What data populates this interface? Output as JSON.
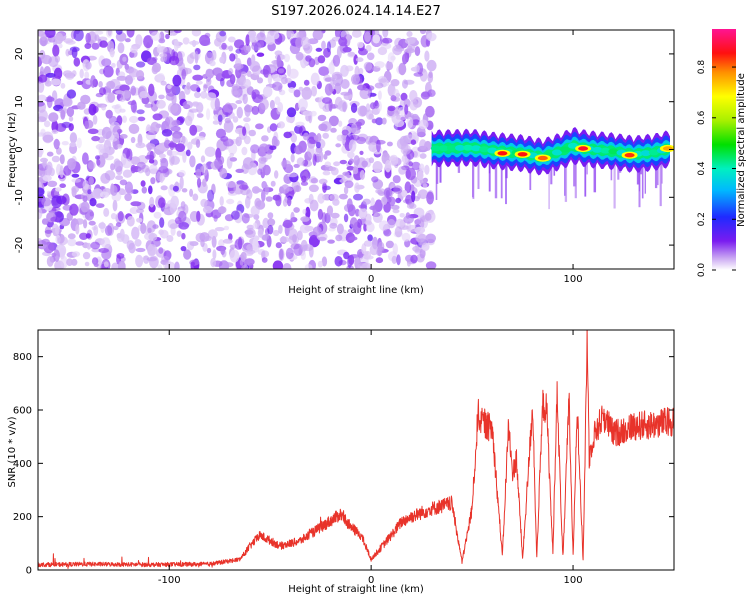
{
  "figure": {
    "title": "S197.2026.024.14.14.E27"
  },
  "chart_data": [
    {
      "type": "heatmap",
      "name": "spectrogram",
      "xlabel": "Height of straight line (km)",
      "ylabel": "Frequency (Hz)",
      "xlim": [
        -165,
        150
      ],
      "ylim": [
        -25,
        25
      ],
      "xticks": [
        -100,
        0,
        100
      ],
      "yticks": [
        -20,
        -10,
        0,
        10,
        20
      ],
      "noise_region_x": [
        -165,
        30
      ],
      "signal_band": {
        "x": [
          30,
          40,
          50,
          60,
          70,
          75,
          80,
          85,
          90,
          95,
          100,
          105,
          110,
          120,
          130,
          140,
          148
        ],
        "center_freq": [
          0.2,
          0.3,
          0.4,
          -0.2,
          -0.6,
          -0.8,
          -1.2,
          -1.6,
          -0.9,
          -0.2,
          0.8,
          0.3,
          0.0,
          -0.4,
          -1.0,
          -0.6,
          0.2
        ],
        "peaks": [
          {
            "x": 65,
            "freq": -0.8,
            "amp": 0.9
          },
          {
            "x": 75,
            "freq": -1.0,
            "amp": 0.9
          },
          {
            "x": 85,
            "freq": -1.8,
            "amp": 0.85
          },
          {
            "x": 105,
            "freq": 0.2,
            "amp": 0.92
          },
          {
            "x": 128,
            "freq": -1.2,
            "amp": 0.88
          },
          {
            "x": 147,
            "freq": 0.2,
            "amp": 0.8
          }
        ]
      },
      "colorbar": {
        "label": "Normalized spectral amplitude",
        "range": [
          0,
          0.95
        ],
        "ticks": [
          0.0,
          0.2,
          0.4,
          0.6,
          0.8
        ]
      }
    },
    {
      "type": "line",
      "name": "snr",
      "xlabel": "Height of straight line (km)",
      "ylabel": "SNR (10 * v/v)",
      "xlim": [
        -165,
        150
      ],
      "ylim": [
        0,
        900
      ],
      "xticks": [
        -100,
        0,
        100
      ],
      "yticks": [
        0,
        200,
        400,
        600,
        800
      ],
      "color": "#e8332a",
      "series": [
        {
          "name": "SNR",
          "x": [
            -165,
            -140,
            -110,
            -80,
            -65,
            -60,
            -55,
            -45,
            -35,
            -25,
            -15,
            -10,
            -5,
            0,
            10,
            15,
            20,
            30,
            40,
            45,
            50,
            53,
            55,
            60,
            65,
            68,
            70,
            72,
            75,
            80,
            82,
            85,
            87,
            90,
            92,
            95,
            98,
            100,
            102,
            105,
            107,
            108,
            110,
            115,
            120,
            130,
            140,
            150
          ],
          "y": [
            20,
            22,
            20,
            22,
            40,
            90,
            130,
            90,
            110,
            160,
            210,
            160,
            130,
            40,
            130,
            180,
            200,
            230,
            250,
            30,
            230,
            590,
            550,
            530,
            50,
            540,
            360,
            420,
            40,
            620,
            40,
            620,
            600,
            60,
            670,
            40,
            640,
            50,
            620,
            30,
            900,
            420,
            500,
            580,
            510,
            540,
            545,
            560
          ]
        }
      ]
    }
  ]
}
